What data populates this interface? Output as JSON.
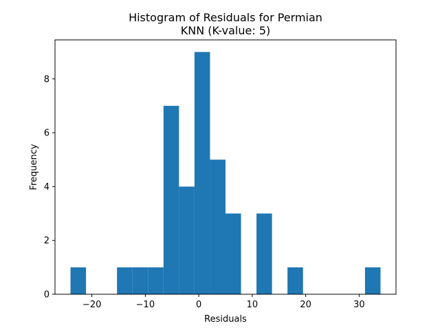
{
  "chart_data": {
    "type": "bar",
    "title_line1": "Histogram of Residuals for Permian",
    "title_line2": "KNN (K-value: 5)",
    "xlabel": "Residuals",
    "ylabel": "Frequency",
    "xlim": [
      -26.9,
      36.9
    ],
    "ylim": [
      0,
      9.45
    ],
    "bar_color": "#1f77b4",
    "grid": false,
    "bins": [
      {
        "x0": -24.0,
        "x1": -21.1,
        "count": 1
      },
      {
        "x0": -21.1,
        "x1": -18.2,
        "count": 0
      },
      {
        "x0": -18.2,
        "x1": -15.3,
        "count": 0
      },
      {
        "x0": -15.3,
        "x1": -12.4,
        "count": 1
      },
      {
        "x0": -12.4,
        "x1": -9.5,
        "count": 1
      },
      {
        "x0": -9.5,
        "x1": -6.6,
        "count": 1
      },
      {
        "x0": -6.6,
        "x1": -3.7,
        "count": 7
      },
      {
        "x0": -3.7,
        "x1": -0.8,
        "count": 4
      },
      {
        "x0": -0.8,
        "x1": 2.1,
        "count": 9
      },
      {
        "x0": 2.1,
        "x1": 5.0,
        "count": 5
      },
      {
        "x0": 5.0,
        "x1": 7.9,
        "count": 3
      },
      {
        "x0": 7.9,
        "x1": 10.8,
        "count": 0
      },
      {
        "x0": 10.8,
        "x1": 13.7,
        "count": 3
      },
      {
        "x0": 13.7,
        "x1": 16.6,
        "count": 0
      },
      {
        "x0": 16.6,
        "x1": 19.5,
        "count": 1
      },
      {
        "x0": 19.5,
        "x1": 22.4,
        "count": 0
      },
      {
        "x0": 22.4,
        "x1": 25.3,
        "count": 0
      },
      {
        "x0": 25.3,
        "x1": 28.2,
        "count": 0
      },
      {
        "x0": 28.2,
        "x1": 31.1,
        "count": 0
      },
      {
        "x0": 31.1,
        "x1": 34.0,
        "count": 1
      }
    ],
    "x_ticks": [
      {
        "value": -20,
        "label": "−20"
      },
      {
        "value": -10,
        "label": "−10"
      },
      {
        "value": 0,
        "label": "0"
      },
      {
        "value": 10,
        "label": "10"
      },
      {
        "value": 20,
        "label": "20"
      },
      {
        "value": 30,
        "label": "30"
      }
    ],
    "y_ticks": [
      {
        "value": 0,
        "label": "0"
      },
      {
        "value": 2,
        "label": "2"
      },
      {
        "value": 4,
        "label": "4"
      },
      {
        "value": 6,
        "label": "6"
      },
      {
        "value": 8,
        "label": "8"
      }
    ]
  }
}
